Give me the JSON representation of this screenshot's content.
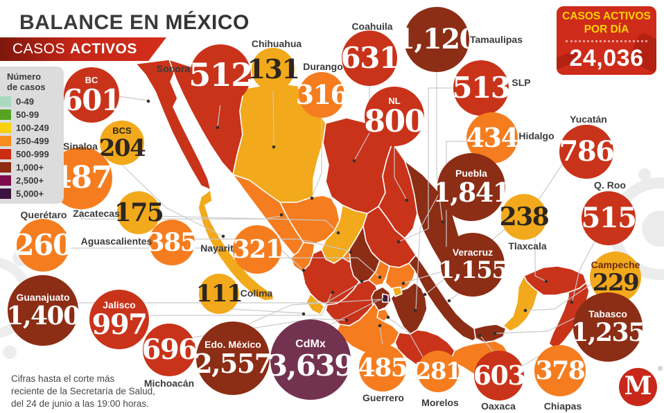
{
  "header": {
    "title_prefix": "BALANCE EN",
    "title_highlight": "MÉXICO",
    "banner_word1": "CASOS",
    "banner_word2": "ACTIVOS"
  },
  "daily_box": {
    "title_line1": "CASOS ACTIVOS",
    "title_line2": "POR DÍA",
    "value": "24,036"
  },
  "legend": {
    "title_line1": "Número",
    "title_line2": "de casos",
    "items": [
      {
        "label": "0-49",
        "color": "#a9d9c1"
      },
      {
        "label": "50-99",
        "color": "#56a421"
      },
      {
        "label": "100-249",
        "color": "#f9d00e"
      },
      {
        "label": "250-499",
        "color": "#f68d1e"
      },
      {
        "label": "500-999",
        "color": "#cb2c13"
      },
      {
        "label": "1,000+",
        "color": "#8e2c13"
      },
      {
        "label": "2,500+",
        "color": "#7d0d4e"
      },
      {
        "label": "5,000+",
        "color": "#3c1240"
      }
    ]
  },
  "states": [
    {
      "id": "bc",
      "name": "BC",
      "value": "601",
      "fill": "#c9331a",
      "num_color": "#ffffff",
      "label_inside": true,
      "label_color": "#ffffff"
    },
    {
      "id": "sonora",
      "name": "Sonora",
      "value": "512",
      "fill": "#c9331a",
      "num_color": "#ffffff",
      "label_inside": false
    },
    {
      "id": "chihuahua",
      "name": "Chihuahua",
      "value": "131",
      "fill": "#f2a91b",
      "num_color": "#2d2620",
      "label_inside": false
    },
    {
      "id": "durango",
      "name": "Durango",
      "value": "316",
      "fill": "#f57d1f",
      "num_color": "#ffffff",
      "label_inside": false
    },
    {
      "id": "coahuila",
      "name": "Coahuila",
      "value": "631",
      "fill": "#c9331a",
      "num_color": "#ffffff",
      "label_inside": false
    },
    {
      "id": "tamaulipas",
      "name": "Tamaulipas",
      "value": "1,120",
      "fill": "#8c2d15",
      "num_color": "#ffffff",
      "label_inside": false
    },
    {
      "id": "nl",
      "name": "NL",
      "value": "800",
      "fill": "#c9331a",
      "num_color": "#ffffff",
      "label_inside": true,
      "label_color": "#ffffff"
    },
    {
      "id": "slp",
      "name": "SLP",
      "value": "513",
      "fill": "#c9331a",
      "num_color": "#ffffff",
      "label_inside": false
    },
    {
      "id": "bcs",
      "name": "BCS",
      "value": "204",
      "fill": "#f2a91b",
      "num_color": "#2d2620",
      "label_inside": true,
      "label_color": "#2d2620"
    },
    {
      "id": "sinaloa",
      "name": "Sinaloa",
      "value": "487",
      "fill": "#f57d1f",
      "num_color": "#ffffff",
      "label_inside": false
    },
    {
      "id": "hidalgo",
      "name": "Hidalgo",
      "value": "434",
      "fill": "#f57d1f",
      "num_color": "#ffffff",
      "label_inside": false
    },
    {
      "id": "yucatan",
      "name": "Yucatán",
      "value": "786",
      "fill": "#c9331a",
      "num_color": "#ffffff",
      "label_inside": false
    },
    {
      "id": "puebla",
      "name": "Puebla",
      "value": "1,841",
      "fill": "#8c2d15",
      "num_color": "#ffffff",
      "label_inside": true,
      "label_color": "#ffffff"
    },
    {
      "id": "qroo",
      "name": "Q. Roo",
      "value": "515",
      "fill": "#c9331a",
      "num_color": "#ffffff",
      "label_inside": false
    },
    {
      "id": "zacatecas",
      "name": "Zacatecas",
      "value": "175",
      "fill": "#f2a91b",
      "num_color": "#2d2620",
      "label_inside": false
    },
    {
      "id": "tlaxcala",
      "name": "Tlaxcala",
      "value": "238",
      "fill": "#f2a91b",
      "num_color": "#2d2620",
      "label_inside": false
    },
    {
      "id": "queretaro",
      "name": "Querétaro",
      "value": "260",
      "fill": "#f57d1f",
      "num_color": "#ffffff",
      "label_inside": false
    },
    {
      "id": "aguascalientes",
      "name": "Aguascalientes",
      "value": "385",
      "fill": "#f57d1f",
      "num_color": "#ffffff",
      "label_inside": false
    },
    {
      "id": "nayarit",
      "name": "Nayarit",
      "value": "321",
      "fill": "#f57d1f",
      "num_color": "#ffffff",
      "label_inside": false
    },
    {
      "id": "veracruz",
      "name": "Veracruz",
      "value": "1,155",
      "fill": "#8c2d15",
      "num_color": "#ffffff",
      "label_inside": true,
      "label_color": "#ffffff"
    },
    {
      "id": "campeche",
      "name": "Campeche",
      "value": "229",
      "fill": "#f2a91b",
      "num_color": "#2d2620",
      "label_inside": true,
      "label_color": "#6b2a10"
    },
    {
      "id": "guanajuato",
      "name": "Guanajuato",
      "value": "1,400",
      "fill": "#8c2d15",
      "num_color": "#ffffff",
      "label_inside": true,
      "label_color": "#ffffff"
    },
    {
      "id": "jalisco",
      "name": "Jalisco",
      "value": "997",
      "fill": "#c9331a",
      "num_color": "#ffffff",
      "label_inside": true,
      "label_color": "#ffffff"
    },
    {
      "id": "colima",
      "name": "Colima",
      "value": "111",
      "fill": "#f2a91b",
      "num_color": "#2d2620",
      "label_inside": false
    },
    {
      "id": "michoacan",
      "name": "Michoacán",
      "value": "696",
      "fill": "#c9331a",
      "num_color": "#ffffff",
      "label_inside": false
    },
    {
      "id": "tabasco",
      "name": "Tabasco",
      "value": "1,235",
      "fill": "#8c2d15",
      "num_color": "#ffffff",
      "label_inside": true,
      "label_color": "#ffffff"
    },
    {
      "id": "edomex",
      "name": "Edo. México",
      "value": "2,557",
      "fill": "#8c2d15",
      "num_color": "#ffffff",
      "label_inside": true,
      "label_color": "#ffffff"
    },
    {
      "id": "cdmx",
      "name": "CdMx",
      "value": "3,639",
      "fill": "#733350",
      "num_color": "#ffffff",
      "label_inside": true,
      "label_color": "#ffffff",
      "map_fill": "#441240"
    },
    {
      "id": "guerrero",
      "name": "Guerrero",
      "value": "485",
      "fill": "#f57d1f",
      "num_color": "#ffffff",
      "label_inside": false
    },
    {
      "id": "morelos",
      "name": "Morelos",
      "value": "281",
      "fill": "#f57d1f",
      "num_color": "#ffffff",
      "label_inside": false
    },
    {
      "id": "oaxaca",
      "name": "Oaxaca",
      "value": "603",
      "fill": "#c9331a",
      "num_color": "#ffffff",
      "label_inside": false
    },
    {
      "id": "chiapas",
      "name": "Chiapas",
      "value": "378",
      "fill": "#f57d1f",
      "num_color": "#ffffff",
      "label_inside": false
    }
  ],
  "footer": {
    "line1": "Cifras hasta el corte más",
    "line2": "reciente de la Secretaría de Salud,",
    "line3": "del 24 de junio a las 19:00 horas."
  },
  "logo": {
    "letter": "M",
    "registered": "®"
  },
  "chart_data": {
    "type": "heatmap",
    "subtype": "choropleth-map-of-mexico-with-value-bubbles",
    "title": "BALANCE EN MÉXICO — CASOS ACTIVOS",
    "total_label": "CASOS ACTIVOS POR DÍA",
    "total": 24036,
    "categories": [
      "BC",
      "Sonora",
      "Chihuahua",
      "Durango",
      "Coahuila",
      "Tamaulipas",
      "NL",
      "SLP",
      "BCS",
      "Sinaloa",
      "Hidalgo",
      "Yucatán",
      "Puebla",
      "Q. Roo",
      "Zacatecas",
      "Tlaxcala",
      "Querétaro",
      "Aguascalientes",
      "Nayarit",
      "Veracruz",
      "Campeche",
      "Guanajuato",
      "Jalisco",
      "Colima",
      "Michoacán",
      "Tabasco",
      "Edo. México",
      "CdMx",
      "Guerrero",
      "Morelos",
      "Oaxaca",
      "Chiapas"
    ],
    "values": [
      601,
      512,
      131,
      316,
      631,
      1120,
      800,
      513,
      204,
      487,
      434,
      786,
      1841,
      515,
      175,
      238,
      260,
      385,
      321,
      1155,
      229,
      1400,
      997,
      111,
      696,
      1235,
      2557,
      3639,
      485,
      281,
      603,
      378
    ],
    "bins": [
      {
        "range": "0-49",
        "color": "#a9d9c1"
      },
      {
        "range": "50-99",
        "color": "#56a421"
      },
      {
        "range": "100-249",
        "color": "#f9d00e"
      },
      {
        "range": "250-499",
        "color": "#f68d1e"
      },
      {
        "range": "500-999",
        "color": "#cb2c13"
      },
      {
        "range": "1,000+",
        "color": "#8e2c13"
      },
      {
        "range": "2,500+",
        "color": "#7d0d4e"
      },
      {
        "range": "5,000+",
        "color": "#3c1240"
      }
    ],
    "legend_position": "left",
    "source_note": "Cifras hasta el corte más reciente de la Secretaría de Salud, del 24 de junio a las 19:00 horas."
  }
}
